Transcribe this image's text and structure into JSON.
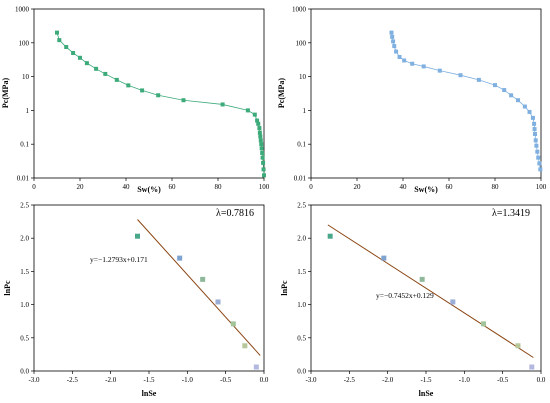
{
  "colors": {
    "green": "#3daa7a",
    "blue": "#7fb0e0",
    "regression_markers": [
      "#4aa88a",
      "#7fa3cf",
      "#8fb89a",
      "#9aaed6",
      "#a3c39a",
      "#b7c79a",
      "#b3b8e0"
    ],
    "fit_line": "#8b4513",
    "axis": "#000000"
  },
  "chart_data": [
    {
      "id": "top-left",
      "type": "line",
      "xlabel": "Sw(%)",
      "ylabel": "Pc(MPa)",
      "xlim": [
        0,
        100
      ],
      "ylim": [
        0.01,
        1000
      ],
      "yscale": "log",
      "xticks": [
        0,
        20,
        40,
        60,
        80,
        100
      ],
      "yticks": [
        0.01,
        0.1,
        1,
        10,
        100,
        1000
      ],
      "ytick_labels": [
        "0.01",
        "0.1",
        "1",
        "10",
        "100",
        "1000"
      ],
      "grid": false,
      "color_key": "green",
      "marker": "square",
      "x": [
        10,
        11,
        14,
        17,
        20,
        23,
        27,
        31,
        36,
        41,
        47,
        54,
        65,
        82,
        93,
        96,
        97,
        97.5,
        98,
        98.2,
        98.4,
        98.6,
        98.8,
        99,
        99.2,
        99.4,
        99.6,
        99.8,
        100
      ],
      "y": [
        200,
        120,
        75,
        50,
        36,
        25,
        17,
        12,
        8,
        5.5,
        3.9,
        2.8,
        2.0,
        1.5,
        1.0,
        0.75,
        0.5,
        0.4,
        0.3,
        0.22,
        0.17,
        0.13,
        0.1,
        0.075,
        0.055,
        0.04,
        0.028,
        0.018,
        0.012
      ]
    },
    {
      "id": "top-right",
      "type": "line",
      "xlabel": "Sw(%)",
      "ylabel": "Pc(MPa)",
      "xlim": [
        0,
        100
      ],
      "ylim": [
        0.01,
        1000
      ],
      "yscale": "log",
      "xticks": [
        0,
        20,
        40,
        60,
        80,
        100
      ],
      "yticks": [
        0.01,
        0.1,
        1,
        10,
        100,
        1000
      ],
      "ytick_labels": [
        "0.01",
        "0.1",
        "1",
        "10",
        "100",
        "1000"
      ],
      "grid": false,
      "color_key": "blue",
      "marker": "square",
      "x": [
        35,
        35.3,
        35.7,
        36.2,
        37,
        38.5,
        40.5,
        44,
        49,
        56,
        65,
        73,
        80,
        84,
        87,
        90,
        93,
        95,
        96.5,
        97,
        97.2,
        97.4,
        97.7,
        98,
        98.4,
        98.8,
        99.3,
        99.7
      ],
      "y": [
        200,
        150,
        110,
        80,
        55,
        38,
        30,
        24,
        20,
        15,
        11,
        8,
        5.6,
        4.0,
        2.8,
        2.0,
        1.3,
        0.9,
        0.6,
        0.4,
        0.28,
        0.2,
        0.13,
        0.09,
        0.06,
        0.04,
        0.027,
        0.018
      ]
    },
    {
      "id": "bottom-left",
      "type": "scatter",
      "xlabel": "lnSe",
      "ylabel": "lnPc",
      "xlim": [
        -3.0,
        0.0
      ],
      "ylim": [
        0.0,
        2.5
      ],
      "xticks": [
        -3.0,
        -2.5,
        -2.0,
        -1.5,
        -1.0,
        -0.5,
        0.0
      ],
      "xtick_labels": [
        "-3.0",
        "-2.5",
        "-2.0",
        "-1.5",
        "-1.0",
        "-0.5",
        "0.0"
      ],
      "yticks": [
        0.0,
        0.5,
        1.0,
        1.5,
        2.0,
        2.5
      ],
      "ytick_labels": [
        "0.0",
        "0.5",
        "1.0",
        "1.5",
        "2.0",
        "2.5"
      ],
      "grid": false,
      "x": [
        -1.65,
        -1.1,
        -0.8,
        -0.6,
        -0.4,
        -0.25,
        -0.1
      ],
      "y": [
        2.03,
        1.7,
        1.38,
        1.04,
        0.71,
        0.38,
        0.06
      ],
      "fit": {
        "slope": -1.2793,
        "intercept": 0.171,
        "x_range": [
          -1.65,
          -0.05
        ]
      },
      "equation": "y=−1.2793x+0.171",
      "lambda_label": "λ=0.7816"
    },
    {
      "id": "bottom-right",
      "type": "scatter",
      "xlabel": "lnSe",
      "ylabel": "lnPc",
      "xlim": [
        -3.0,
        0.0
      ],
      "ylim": [
        0.0,
        2.5
      ],
      "xticks": [
        -3.0,
        -2.5,
        -2.0,
        -1.5,
        -1.0,
        -0.5,
        0.0
      ],
      "xtick_labels": [
        "-3.0",
        "-2.5",
        "-2.0",
        "-1.5",
        "-1.0",
        "-0.5",
        "0.0"
      ],
      "yticks": [
        0.0,
        0.5,
        1.0,
        1.5,
        2.0,
        2.5
      ],
      "ytick_labels": [
        "0.0",
        "0.5",
        "1.0",
        "1.5",
        "2.0",
        "2.5"
      ],
      "grid": false,
      "x": [
        -2.75,
        -2.05,
        -1.55,
        -1.15,
        -0.75,
        -0.3,
        -0.12
      ],
      "y": [
        2.03,
        1.7,
        1.38,
        1.04,
        0.71,
        0.38,
        0.06
      ],
      "fit": {
        "slope": -0.7452,
        "intercept": 0.129,
        "x_range": [
          -2.78,
          -0.1
        ]
      },
      "equation": "y=−0.7452x+0.129",
      "lambda_label": "λ=1.3419"
    }
  ]
}
